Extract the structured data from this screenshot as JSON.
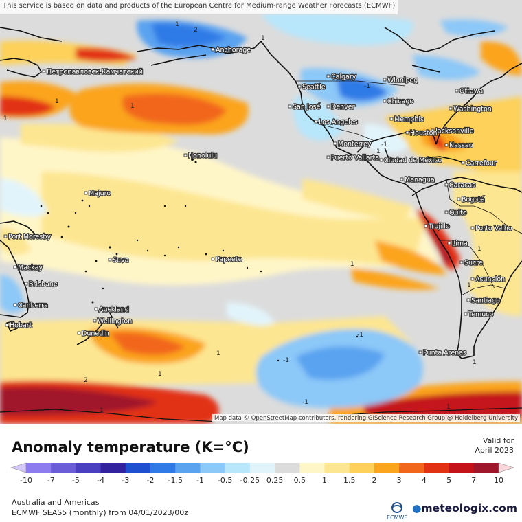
{
  "attribution_top": "This service is based on data and products of the European Centre for Medium-range Weather Forecasts (ECMWF)",
  "attribution_bottom": "Map data © OpenStreetMap contributors, rendering GIScience Research Group @ Heidelberg University",
  "title": "Anomaly temperature (K=°C)",
  "valid_label": "Valid for",
  "valid_date": "April 2023",
  "region": "Australia and Americas",
  "model_run": "ECMWF SEAS5 (monthly) from 04/01/2023/00z",
  "ecmwf_logo_text": "ECMWF",
  "brand": "meteologix.com",
  "colors": {
    "neutral": "#dcdcdc",
    "cold": [
      "#8c7cf0",
      "#6b5cd8",
      "#4a3fc0",
      "#3222a0",
      "#1d4fd0",
      "#2f7ae6",
      "#5aa3f0",
      "#8cc8f8",
      "#b8e6fb",
      "#e2f4fb"
    ],
    "warm": [
      "#fff6c8",
      "#fde691",
      "#fdd15a",
      "#fba41e",
      "#f2661c",
      "#e23214",
      "#c4141a",
      "#a0162a",
      "#c43a44",
      "#e06870",
      "#f4a0a4"
    ]
  },
  "legend": {
    "ticks": [
      "-10",
      "-7",
      "-5",
      "-4",
      "-3",
      "-2",
      "-1.5",
      "-1",
      "-0.5",
      "-0.25",
      "0.25",
      "0.5",
      "1",
      "1.5",
      "2",
      "3",
      "4",
      "5",
      "7",
      "10"
    ]
  },
  "contour_labels": [
    "1",
    "1",
    "1",
    "2",
    "1",
    "1",
    "1",
    "1",
    "1",
    "1",
    "-1",
    "-1",
    "-1",
    "-1",
    "1",
    "1",
    "1",
    "1",
    "-1",
    "2",
    "1"
  ],
  "cities": [
    {
      "name": "Anchorage"
    },
    {
      "name": "Петропавловск-Камчатский"
    },
    {
      "name": "Calgary"
    },
    {
      "name": "Winnipeg"
    },
    {
      "name": "Seattle"
    },
    {
      "name": "Ottawa"
    },
    {
      "name": "San José"
    },
    {
      "name": "Denver"
    },
    {
      "name": "Chicago"
    },
    {
      "name": "Washington"
    },
    {
      "name": "Los Angeles"
    },
    {
      "name": "Memphis"
    },
    {
      "name": "Jacksonville"
    },
    {
      "name": "Houston"
    },
    {
      "name": "Nassau"
    },
    {
      "name": "Monterrey"
    },
    {
      "name": "Honolulu"
    },
    {
      "name": "Puerto Vallarta"
    },
    {
      "name": "Ciudad de México"
    },
    {
      "name": "Carrefour"
    },
    {
      "name": "Managua"
    },
    {
      "name": "Caracas"
    },
    {
      "name": "Majuro"
    },
    {
      "name": "Bogotá"
    },
    {
      "name": "Quito"
    },
    {
      "name": "Trujillo"
    },
    {
      "name": "Porto Velho"
    },
    {
      "name": "Port Moresby"
    },
    {
      "name": "Lima"
    },
    {
      "name": "Suva"
    },
    {
      "name": "Papeete"
    },
    {
      "name": "Sucre"
    },
    {
      "name": "Mackay"
    },
    {
      "name": "Asunción"
    },
    {
      "name": "Brisbane"
    },
    {
      "name": "Santiago"
    },
    {
      "name": "Canberra"
    },
    {
      "name": "Auckland"
    },
    {
      "name": "Temuco"
    },
    {
      "name": "Wellington"
    },
    {
      "name": "Hobart"
    },
    {
      "name": "Dunedin"
    },
    {
      "name": "Punta Arenas"
    }
  ]
}
